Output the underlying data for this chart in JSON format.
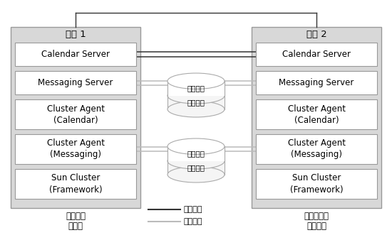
{
  "bg_color": "#ffffff",
  "panel_color": "#d8d8d8",
  "box_color": "#ffffff",
  "box_edge": "#999999",
  "panel_edge": "#999999",
  "line_dark": "#333333",
  "line_light": "#bbbbbb",
  "disk_fill": "#f5f5f5",
  "disk_edge": "#aaaaaa",
  "system1_label": "系统 1",
  "system2_label": "系统 2",
  "bottom_left_line1": "活动节点",
  "bottom_left_line2": "（主）",
  "bottom_right_line1": "热备用节点",
  "bottom_right_line2": "（备份）",
  "legend_public": "公共网络",
  "legend_private": "专用网络",
  "left_boxes": [
    "Calendar Server",
    "Messaging Server",
    "Cluster Agent\n(Calendar)",
    "Cluster Agent\n(Messaging)",
    "Sun Cluster\n(Framework)"
  ],
  "right_boxes": [
    "Calendar Server",
    "Messaging Server",
    "Cluster Agent\n(Calendar)",
    "Cluster Agent\n(Messaging)",
    "Sun Cluster\n(Framework)"
  ],
  "disk1_labels": [
    "消息存储",
    "日历存储"
  ],
  "disk2_labels": [
    "消息存储",
    "日历存储"
  ],
  "fig_width": 5.5,
  "fig_height": 3.38,
  "dpi": 100
}
